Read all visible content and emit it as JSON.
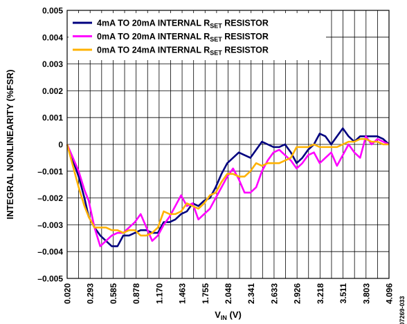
{
  "chart_data": {
    "type": "line",
    "xlabel": "V",
    "xlabel_sub": "IN",
    "xlabel_unit": " (V)",
    "ylabel": "INTEGRAL NONLINEARITY (%FSR)",
    "xlim": [
      0.02,
      4.096
    ],
    "ylim": [
      -0.005,
      0.005
    ],
    "x_ticks": [
      "0.020",
      "0.293",
      "0.585",
      "0.878",
      "1.170",
      "1.463",
      "1.755",
      "2.048",
      "2.341",
      "2.633",
      "2.926",
      "3.218",
      "3.511",
      "3.803",
      "4.096"
    ],
    "y_ticks": [
      "0.005",
      "0.004",
      "0.003",
      "0.002",
      "0.001",
      "0",
      "–0.001",
      "–0.002",
      "–0.003",
      "–0.004",
      "–0.005"
    ],
    "grid": true,
    "legend_position": "top-left",
    "x": [
      0.02,
      0.166,
      0.239,
      0.293,
      0.366,
      0.439,
      0.512,
      0.585,
      0.658,
      0.731,
      0.804,
      0.878,
      0.951,
      1.024,
      1.097,
      1.17,
      1.243,
      1.317,
      1.39,
      1.463,
      1.536,
      1.609,
      1.682,
      1.755,
      1.828,
      1.901,
      1.975,
      2.048,
      2.121,
      2.194,
      2.267,
      2.341,
      2.414,
      2.487,
      2.56,
      2.633,
      2.706,
      2.779,
      2.853,
      2.926,
      2.999,
      3.072,
      3.145,
      3.218,
      3.291,
      3.364,
      3.437,
      3.511,
      3.584,
      3.657,
      3.73,
      3.803,
      3.876,
      3.949,
      4.022,
      4.096
    ],
    "series": [
      {
        "name": "4mA TO 20mA INTERNAL R",
        "sub": "SET",
        "suffix": " RESISTOR",
        "color": "#00007f",
        "values": [
          0,
          -0.0012,
          -0.002,
          -0.0027,
          -0.0031,
          -0.0034,
          -0.0036,
          -0.0038,
          -0.0038,
          -0.0034,
          -0.0034,
          -0.0033,
          -0.0032,
          -0.0032,
          -0.0033,
          -0.0033,
          -0.0029,
          -0.0029,
          -0.0028,
          -0.0026,
          -0.0025,
          -0.0022,
          -0.0023,
          -0.0021,
          -0.002,
          -0.0016,
          -0.0011,
          -0.0007,
          -0.0005,
          -0.0003,
          -0.0004,
          -0.0005,
          -0.0002,
          0.0001,
          0.0,
          -0.0001,
          -0.0001,
          0.0,
          -0.0003,
          -0.0007,
          -0.0005,
          -0.0002,
          0.0,
          0.0004,
          0.0003,
          0.0,
          0.0003,
          0.0006,
          0.0003,
          0.0001,
          0.0003,
          0.0003,
          0.0003,
          0.0003,
          0.0002,
          0.0
        ]
      },
      {
        "name": "0mA TO 20mA INTERNAL R",
        "sub": "SET",
        "suffix": " RESISTOR",
        "color": "#ff00ff",
        "values": [
          0,
          -0.001,
          -0.0017,
          -0.0021,
          -0.0031,
          -0.0038,
          -0.0036,
          -0.0034,
          -0.0033,
          -0.0033,
          -0.0031,
          -0.0029,
          -0.0026,
          -0.0031,
          -0.0036,
          -0.0034,
          -0.003,
          -0.0027,
          -0.0023,
          -0.0019,
          -0.0023,
          -0.0022,
          -0.0028,
          -0.0026,
          -0.0024,
          -0.002,
          -0.0016,
          -0.0012,
          -0.0009,
          -0.0013,
          -0.0018,
          -0.0018,
          -0.0016,
          -0.001,
          -0.0006,
          -0.0003,
          -0.0002,
          -0.0004,
          -0.0006,
          -0.0009,
          -0.0007,
          -0.0004,
          -0.0003,
          -0.0007,
          -0.0005,
          -0.0003,
          -0.0008,
          -0.0004,
          0.0,
          -0.0003,
          -0.0005,
          0.0003,
          0.0,
          0.0002,
          0.0001,
          0.0
        ]
      },
      {
        "name": "0mA TO 24mA INTERNAL R",
        "sub": "SET",
        "suffix": " RESISTOR",
        "color": "#ffb200",
        "values": [
          0,
          -0.0016,
          -0.0023,
          -0.0027,
          -0.0031,
          -0.0031,
          -0.0031,
          -0.0032,
          -0.0032,
          -0.0033,
          -0.0032,
          -0.0032,
          -0.0034,
          -0.0034,
          -0.0033,
          -0.0031,
          -0.0025,
          -0.0026,
          -0.0026,
          -0.0025,
          -0.0022,
          -0.0023,
          -0.0024,
          -0.0022,
          -0.0019,
          -0.0018,
          -0.0014,
          -0.0011,
          -0.0011,
          -0.0012,
          -0.0012,
          -0.001,
          -0.0007,
          -0.0008,
          -0.0007,
          -0.0007,
          -0.0007,
          -0.0006,
          -0.0005,
          -0.0001,
          -0.0001,
          -0.0001,
          0.0,
          -0.0001,
          -0.0001,
          -0.0001,
          -0.0001,
          0.0,
          0.0001,
          0.0001,
          0.0002,
          0.0002,
          0.0001,
          0.0001,
          0.0,
          0.0
        ]
      }
    ]
  },
  "figure_id": "07269-033"
}
